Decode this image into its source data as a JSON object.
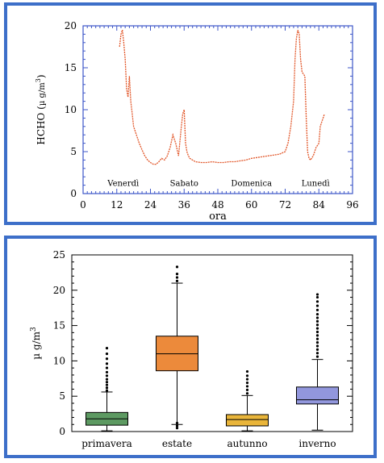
{
  "chart_data": [
    {
      "type": "line",
      "xlabel": "ora",
      "ylabel": "HCHO (µ g/m³)",
      "ylabel_main": "HCHO (",
      "ylabel_unit": "µ g/m",
      "ylabel_exp": "3",
      "ylabel_close": ")",
      "xlim": [
        0,
        96
      ],
      "ylim": [
        0,
        20
      ],
      "xticks": [
        "0",
        "12",
        "24",
        "36",
        "48",
        "60",
        "72",
        "84",
        "96"
      ],
      "yticks": [
        "0",
        "5",
        "10",
        "15",
        "20"
      ],
      "day_labels": [
        {
          "text": "Venerdì",
          "x": 12
        },
        {
          "text": "Sabato",
          "x": 36
        },
        {
          "text": "Domenica",
          "x": 60
        },
        {
          "text": "Lunedì",
          "x": 84
        }
      ],
      "series": [
        {
          "color": "#e2572a",
          "x": [
            13,
            13.5,
            14,
            14.5,
            15,
            15.5,
            16,
            16.5,
            17,
            17.5,
            18,
            19,
            20,
            21,
            22,
            23,
            24,
            25,
            26,
            27,
            28,
            29,
            30,
            31,
            32,
            33,
            34,
            35,
            35.5,
            36,
            36.5,
            37,
            37.5,
            38,
            39,
            40,
            42,
            44,
            46,
            48,
            50,
            52,
            54,
            56,
            58,
            60,
            62,
            64,
            66,
            68,
            70,
            72,
            73,
            74,
            75,
            75.5,
            76,
            76.5,
            77,
            77.5,
            78,
            79,
            79.5,
            80,
            80.5,
            81,
            82,
            83,
            84,
            84.5,
            85,
            85.5,
            86
          ],
          "y": [
            17.5,
            19,
            19.5,
            18,
            16,
            12.5,
            11.5,
            14,
            11,
            9.5,
            8,
            7,
            6,
            5.2,
            4.5,
            4,
            3.7,
            3.5,
            3.5,
            3.8,
            4.2,
            4,
            4.5,
            5.5,
            7,
            6,
            4.5,
            8,
            9.5,
            10,
            6,
            5,
            4.5,
            4.2,
            4,
            3.8,
            3.7,
            3.7,
            3.8,
            3.7,
            3.7,
            3.8,
            3.8,
            3.9,
            4,
            4.2,
            4.3,
            4.4,
            4.5,
            4.6,
            4.7,
            5,
            6,
            8,
            11,
            16,
            18.5,
            19.5,
            19,
            16,
            14.5,
            14,
            9,
            5,
            4.2,
            4,
            4.5,
            5.5,
            6,
            8,
            8.5,
            9,
            9.5
          ]
        }
      ]
    },
    {
      "type": "box",
      "ylabel": "µ g/m³",
      "ylabel_unit": "µ g/m",
      "ylabel_exp": "3",
      "ylim": [
        0,
        25
      ],
      "yticks": [
        "0",
        "5",
        "10",
        "15",
        "20",
        "25"
      ],
      "categories": [
        "primavera",
        "estate",
        "autunno",
        "inverno"
      ],
      "boxes": [
        {
          "q1": 0.9,
          "median": 1.8,
          "q3": 2.7,
          "whisker_low": 0.1,
          "whisker_high": 5.6,
          "outliers": [
            5.8,
            6.2,
            6.6,
            7.0,
            7.4,
            7.9,
            8.4,
            9.0,
            9.6,
            10.3,
            11.0,
            11.8
          ],
          "color": "#5d9a62"
        },
        {
          "q1": 8.6,
          "median": 11.0,
          "q3": 13.5,
          "whisker_low": 1.0,
          "whisker_high": 21.0,
          "outliers": [
            21.3,
            21.8,
            22.3,
            23.3,
            1.2,
            0.8,
            0.5
          ],
          "color": "#ec8a3b"
        },
        {
          "q1": 0.8,
          "median": 1.7,
          "q3": 2.4,
          "whisker_low": 0.1,
          "whisker_high": 5.1,
          "outliers": [
            5.4,
            5.9,
            6.4,
            6.9,
            7.4,
            7.9,
            8.5
          ],
          "color": "#e9b53a"
        },
        {
          "q1": 3.9,
          "median": 4.5,
          "q3": 6.3,
          "whisker_low": 0.2,
          "whisker_high": 10.2,
          "outliers": [
            10.6,
            11.1,
            11.6,
            12.1,
            12.6,
            13.1,
            13.6,
            14.1,
            14.6,
            15.1,
            15.6,
            16.1,
            16.6,
            17.2,
            17.8,
            18.4,
            19.0,
            19.4
          ],
          "color": "#9297dd"
        }
      ]
    }
  ]
}
